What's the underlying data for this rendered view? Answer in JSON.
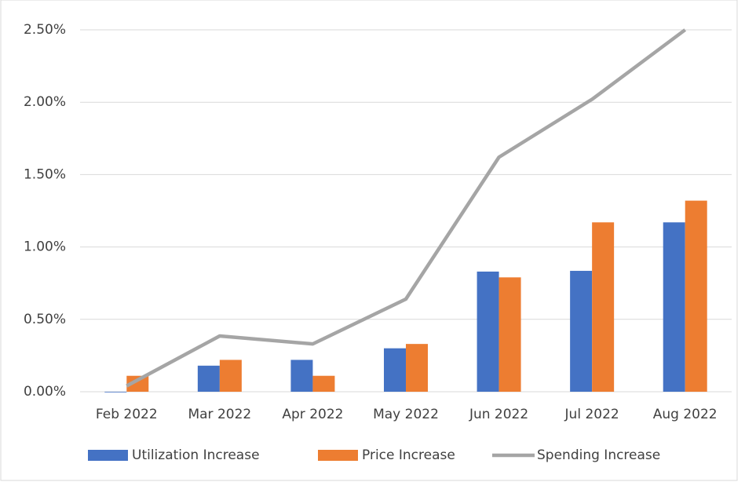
{
  "chart_data": {
    "type": "bar-line",
    "categories": [
      "Feb 2022",
      "Mar 2022",
      "Apr 2022",
      "May 2022",
      "Jun 2022",
      "Jul 2022",
      "Aug 2022"
    ],
    "series": [
      {
        "name": "Utilization Increase",
        "type": "bar",
        "color": "#4472c4",
        "values": [
          0,
          0.18,
          0.22,
          0.3,
          0.83,
          0.835,
          1.17
        ]
      },
      {
        "name": "Price Increase",
        "type": "bar",
        "color": "#ed7d31",
        "values": [
          0.11,
          0.22,
          0.11,
          0.33,
          0.79,
          1.17,
          1.32
        ]
      },
      {
        "name": "Spending Increase",
        "type": "line",
        "color": "#a5a5a5",
        "values": [
          0.04,
          0.385,
          0.33,
          0.64,
          1.62,
          2.02,
          2.5
        ]
      }
    ],
    "ylim": [
      0,
      2.5
    ],
    "yticks": [
      {
        "value": 0,
        "label": "0.00%"
      },
      {
        "value": 0.5,
        "label": "0.50%"
      },
      {
        "value": 1,
        "label": "1.00%"
      },
      {
        "value": 1.5,
        "label": "1.50%"
      },
      {
        "value": 2,
        "label": "2.00%"
      },
      {
        "value": 2.5,
        "label": "2.50%"
      }
    ],
    "grid": true,
    "legend": "bottom"
  }
}
